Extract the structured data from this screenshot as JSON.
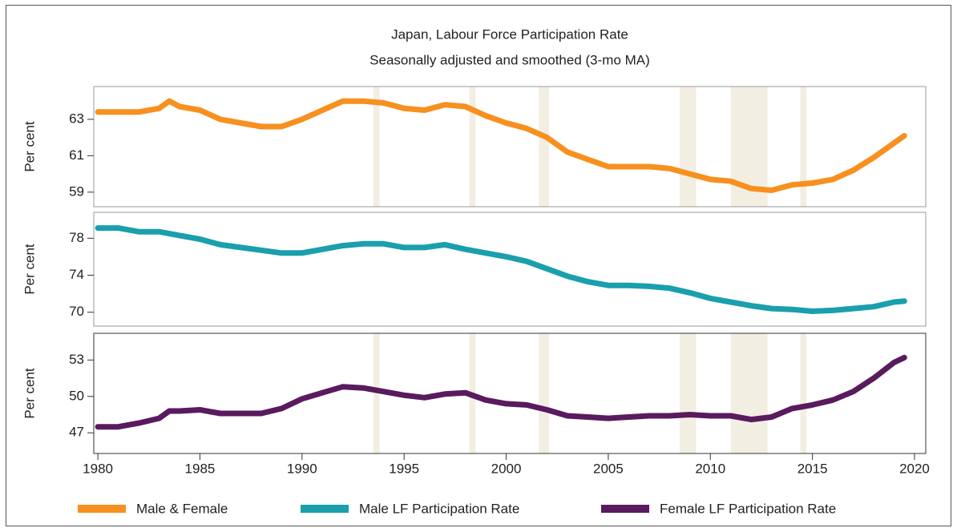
{
  "chart_data": [
    {
      "type": "line",
      "title": "Japan, Labour Force Participation Rate",
      "subtitle": "Seasonally adjusted and smoothed (3-mo MA)",
      "ylabel": "Per cent",
      "x": [
        1980,
        1981,
        1982,
        1983,
        1983.5,
        1984,
        1985,
        1986,
        1987,
        1988,
        1989,
        1990,
        1991,
        1992,
        1993,
        1994,
        1995,
        1996,
        1997,
        1998,
        1999,
        2000,
        2001,
        2002,
        2003,
        2004,
        2005,
        2006,
        2007,
        2008,
        2009,
        2010,
        2011,
        2012,
        2013,
        2014,
        2015,
        2016,
        2017,
        2018,
        2019,
        2019.5
      ],
      "series": [
        {
          "name": "Male & Female",
          "color": "#f7901e",
          "values": [
            63.4,
            63.4,
            63.4,
            63.6,
            64.0,
            63.7,
            63.5,
            63.0,
            62.8,
            62.6,
            62.6,
            63.0,
            63.5,
            64.0,
            64.0,
            63.9,
            63.6,
            63.5,
            63.8,
            63.7,
            63.2,
            62.8,
            62.5,
            62.0,
            61.2,
            60.8,
            60.4,
            60.4,
            60.4,
            60.3,
            60.0,
            59.7,
            59.6,
            59.2,
            59.1,
            59.4,
            59.5,
            59.7,
            60.2,
            60.9,
            61.7,
            62.1
          ]
        }
      ],
      "xlim": [
        1979.8,
        2020.55
      ],
      "ylim": [
        58.2,
        64.8
      ],
      "yticks": [
        59,
        61,
        63
      ],
      "shaded": [
        [
          1993.5,
          1993.8
        ],
        [
          1998.2,
          1998.5
        ],
        [
          2001.6,
          2002.1
        ],
        [
          2008.5,
          2009.3
        ],
        [
          2011.0,
          2012.8
        ],
        [
          2014.4,
          2014.7
        ]
      ]
    },
    {
      "type": "line",
      "ylabel": "Per cent",
      "x": [
        1980,
        1981,
        1982,
        1983,
        1984,
        1985,
        1986,
        1987,
        1988,
        1989,
        1990,
        1991,
        1992,
        1993,
        1994,
        1995,
        1996,
        1997,
        1998,
        1999,
        2000,
        2001,
        2002,
        2003,
        2004,
        2005,
        2006,
        2007,
        2008,
        2009,
        2010,
        2011,
        2012,
        2013,
        2014,
        2015,
        2016,
        2017,
        2018,
        2019,
        2019.5
      ],
      "series": [
        {
          "name": "Male LF Participation Rate",
          "color": "#1a9fad",
          "values": [
            79.1,
            79.1,
            78.7,
            78.7,
            78.3,
            77.9,
            77.3,
            77.0,
            76.7,
            76.4,
            76.4,
            76.8,
            77.2,
            77.4,
            77.4,
            77.0,
            77.0,
            77.3,
            76.8,
            76.4,
            76.0,
            75.5,
            74.7,
            73.9,
            73.3,
            72.9,
            72.9,
            72.8,
            72.6,
            72.1,
            71.5,
            71.1,
            70.7,
            70.4,
            70.3,
            70.1,
            70.2,
            70.4,
            70.6,
            71.1,
            71.2
          ]
        }
      ],
      "xlim": [
        1979.8,
        2020.55
      ],
      "ylim": [
        68.5,
        80.8
      ],
      "yticks": [
        70,
        74,
        78
      ]
    },
    {
      "type": "line",
      "ylabel": "Per cent",
      "x": [
        1980,
        1981,
        1982,
        1983,
        1983.5,
        1984,
        1985,
        1986,
        1987,
        1988,
        1989,
        1990,
        1991,
        1992,
        1993,
        1994,
        1995,
        1996,
        1997,
        1998,
        1999,
        2000,
        2001,
        2002,
        2003,
        2004,
        2005,
        2006,
        2007,
        2008,
        2009,
        2010,
        2011,
        2012,
        2013,
        2014,
        2015,
        2016,
        2017,
        2018,
        2019,
        2019.5
      ],
      "series": [
        {
          "name": "Female LF Participation Rate",
          "color": "#5a1a5e",
          "values": [
            47.5,
            47.5,
            47.8,
            48.2,
            48.8,
            48.8,
            48.9,
            48.6,
            48.6,
            48.6,
            49.0,
            49.8,
            50.3,
            50.8,
            50.7,
            50.4,
            50.1,
            49.9,
            50.2,
            50.3,
            49.7,
            49.4,
            49.3,
            48.9,
            48.4,
            48.3,
            48.2,
            48.3,
            48.4,
            48.4,
            48.5,
            48.4,
            48.4,
            48.1,
            48.3,
            49.0,
            49.3,
            49.7,
            50.4,
            51.5,
            52.8,
            53.2
          ]
        }
      ],
      "xlim": [
        1979.8,
        2020.55
      ],
      "ylim": [
        45.3,
        55.2
      ],
      "yticks": [
        47,
        50,
        53
      ],
      "xticks": [
        1980,
        1985,
        1990,
        1995,
        2000,
        2005,
        2010,
        2015,
        2020
      ],
      "shaded": [
        [
          1993.5,
          1993.8
        ],
        [
          1998.2,
          1998.5
        ],
        [
          2001.6,
          2002.1
        ],
        [
          2008.5,
          2009.3
        ],
        [
          2011.0,
          2012.8
        ],
        [
          2014.4,
          2014.7
        ]
      ]
    }
  ]
}
